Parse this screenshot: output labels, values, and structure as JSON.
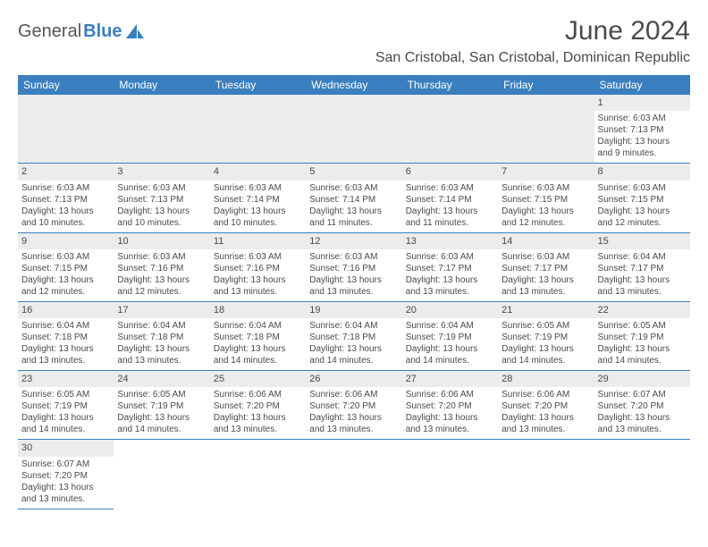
{
  "brand": {
    "part1": "General",
    "part2": "Blue"
  },
  "title": "June 2024",
  "location": "San Cristobal, San Cristobal, Dominican Republic",
  "colors": {
    "header_bg": "#3a7fbf",
    "header_text": "#ffffff",
    "row_stripe": "#ececec",
    "border": "#3a7fbf",
    "text": "#4a4a4a",
    "page_bg": "#ffffff"
  },
  "typography": {
    "title_fontsize": 30,
    "location_fontsize": 16,
    "header_fontsize": 12,
    "cell_fontsize": 10
  },
  "layout": {
    "columns": 7,
    "rows": 6,
    "first_weekday_index": 6
  },
  "weekdays": [
    "Sunday",
    "Monday",
    "Tuesday",
    "Wednesday",
    "Thursday",
    "Friday",
    "Saturday"
  ],
  "days": [
    {
      "n": 1,
      "sunrise": "6:03 AM",
      "sunset": "7:13 PM",
      "dl": "13 hours and 9 minutes."
    },
    {
      "n": 2,
      "sunrise": "6:03 AM",
      "sunset": "7:13 PM",
      "dl": "13 hours and 10 minutes."
    },
    {
      "n": 3,
      "sunrise": "6:03 AM",
      "sunset": "7:13 PM",
      "dl": "13 hours and 10 minutes."
    },
    {
      "n": 4,
      "sunrise": "6:03 AM",
      "sunset": "7:14 PM",
      "dl": "13 hours and 10 minutes."
    },
    {
      "n": 5,
      "sunrise": "6:03 AM",
      "sunset": "7:14 PM",
      "dl": "13 hours and 11 minutes."
    },
    {
      "n": 6,
      "sunrise": "6:03 AM",
      "sunset": "7:14 PM",
      "dl": "13 hours and 11 minutes."
    },
    {
      "n": 7,
      "sunrise": "6:03 AM",
      "sunset": "7:15 PM",
      "dl": "13 hours and 12 minutes."
    },
    {
      "n": 8,
      "sunrise": "6:03 AM",
      "sunset": "7:15 PM",
      "dl": "13 hours and 12 minutes."
    },
    {
      "n": 9,
      "sunrise": "6:03 AM",
      "sunset": "7:15 PM",
      "dl": "13 hours and 12 minutes."
    },
    {
      "n": 10,
      "sunrise": "6:03 AM",
      "sunset": "7:16 PM",
      "dl": "13 hours and 12 minutes."
    },
    {
      "n": 11,
      "sunrise": "6:03 AM",
      "sunset": "7:16 PM",
      "dl": "13 hours and 13 minutes."
    },
    {
      "n": 12,
      "sunrise": "6:03 AM",
      "sunset": "7:16 PM",
      "dl": "13 hours and 13 minutes."
    },
    {
      "n": 13,
      "sunrise": "6:03 AM",
      "sunset": "7:17 PM",
      "dl": "13 hours and 13 minutes."
    },
    {
      "n": 14,
      "sunrise": "6:03 AM",
      "sunset": "7:17 PM",
      "dl": "13 hours and 13 minutes."
    },
    {
      "n": 15,
      "sunrise": "6:04 AM",
      "sunset": "7:17 PM",
      "dl": "13 hours and 13 minutes."
    },
    {
      "n": 16,
      "sunrise": "6:04 AM",
      "sunset": "7:18 PM",
      "dl": "13 hours and 13 minutes."
    },
    {
      "n": 17,
      "sunrise": "6:04 AM",
      "sunset": "7:18 PM",
      "dl": "13 hours and 13 minutes."
    },
    {
      "n": 18,
      "sunrise": "6:04 AM",
      "sunset": "7:18 PM",
      "dl": "13 hours and 14 minutes."
    },
    {
      "n": 19,
      "sunrise": "6:04 AM",
      "sunset": "7:18 PM",
      "dl": "13 hours and 14 minutes."
    },
    {
      "n": 20,
      "sunrise": "6:04 AM",
      "sunset": "7:19 PM",
      "dl": "13 hours and 14 minutes."
    },
    {
      "n": 21,
      "sunrise": "6:05 AM",
      "sunset": "7:19 PM",
      "dl": "13 hours and 14 minutes."
    },
    {
      "n": 22,
      "sunrise": "6:05 AM",
      "sunset": "7:19 PM",
      "dl": "13 hours and 14 minutes."
    },
    {
      "n": 23,
      "sunrise": "6:05 AM",
      "sunset": "7:19 PM",
      "dl": "13 hours and 14 minutes."
    },
    {
      "n": 24,
      "sunrise": "6:05 AM",
      "sunset": "7:19 PM",
      "dl": "13 hours and 14 minutes."
    },
    {
      "n": 25,
      "sunrise": "6:06 AM",
      "sunset": "7:20 PM",
      "dl": "13 hours and 13 minutes."
    },
    {
      "n": 26,
      "sunrise": "6:06 AM",
      "sunset": "7:20 PM",
      "dl": "13 hours and 13 minutes."
    },
    {
      "n": 27,
      "sunrise": "6:06 AM",
      "sunset": "7:20 PM",
      "dl": "13 hours and 13 minutes."
    },
    {
      "n": 28,
      "sunrise": "6:06 AM",
      "sunset": "7:20 PM",
      "dl": "13 hours and 13 minutes."
    },
    {
      "n": 29,
      "sunrise": "6:07 AM",
      "sunset": "7:20 PM",
      "dl": "13 hours and 13 minutes."
    },
    {
      "n": 30,
      "sunrise": "6:07 AM",
      "sunset": "7:20 PM",
      "dl": "13 hours and 13 minutes."
    }
  ],
  "labels": {
    "sunrise": "Sunrise:",
    "sunset": "Sunset:",
    "daylight": "Daylight:"
  }
}
